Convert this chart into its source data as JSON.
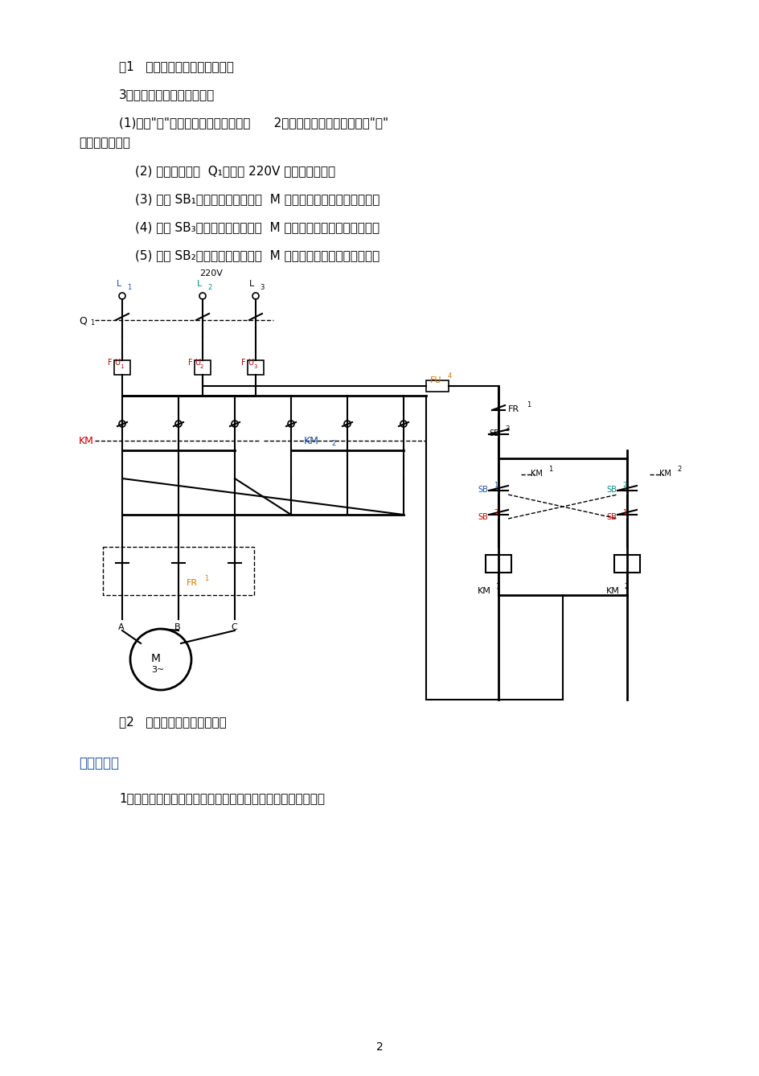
{
  "page_width": 9.45,
  "page_height": 13.38,
  "bg_color": "#ffffff",
  "text_color_black": "#000000",
  "text_color_blue": "#1e4d9b",
  "text_color_red": "#c00000",
  "text_color_orange": "#d4750a",
  "text_color_teal": "#008b8b",
  "title1": "图1   接触器联锁正反转控制线路",
  "title2": "3、按钮联锁正反转控制线路",
  "para1": "(1)按下\"关\"按钮切断交流电源。按图      2接线。经检查无误后，按下\"开\"",
  "para1b": "按钮通电操作。",
  "para2": "(2) 合上电源开关  Q₁，接通 220V 三相交流电源。",
  "para3": "(3) 按下 SB₁，观察并记录电动机  M 的转向、各触点的吸断情况。",
  "para4": "(4) 按下 SB₃，观察并记录电动机  M 的转向、各触点的吸断情况。",
  "para5": "(5) 按下 SB₂，观察并记录电动机  M 的转向、各触点的吸断情况。",
  "fig2_caption": "图2   按钮联锁正反转控制线路",
  "section4": "四、分析题",
  "question1": "1、接触器和按钮的联锁触点在继电接触控制中起到什么作用？",
  "page_num": "2"
}
